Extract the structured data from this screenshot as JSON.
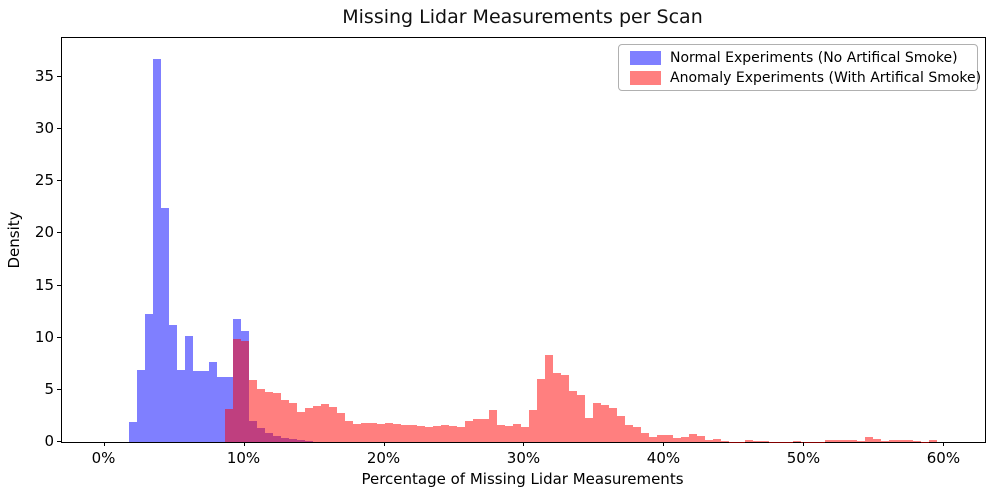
{
  "figure": {
    "title": "Missing Lidar Measurements per Scan"
  },
  "chart_data": {
    "type": "bar",
    "subtype": "overlaid-histogram",
    "title": "Missing Lidar Measurements per Scan",
    "xlabel": "Percentage of Missing Lidar Measurements",
    "ylabel": "Density",
    "xlim_pct": [
      -3.04,
      62.9
    ],
    "ylim": [
      0,
      38.74
    ],
    "grid": false,
    "legend_position": "upper right",
    "xticks": [
      {
        "value": 0,
        "label": "0%"
      },
      {
        "value": 10,
        "label": "10%"
      },
      {
        "value": 20,
        "label": "20%"
      },
      {
        "value": 30,
        "label": "30%"
      },
      {
        "value": 40,
        "label": "40%"
      },
      {
        "value": 50,
        "label": "50%"
      },
      {
        "value": 60,
        "label": "60%"
      }
    ],
    "yticks": [
      0,
      5,
      10,
      15,
      20,
      25,
      30,
      35
    ],
    "bin_width_pct": 0.5714,
    "series": [
      {
        "name": "Normal Experiments (No Artifical Smoke)",
        "color": "rgba(0,0,255,0.5)",
        "x_start_pct": 1.76,
        "densities": [
          1.9,
          6.9,
          12.3,
          36.7,
          22.4,
          11.2,
          6.9,
          10.2,
          6.8,
          6.8,
          7.7,
          6.2,
          6.2,
          11.8,
          10.6,
          2.0,
          1.3,
          0.9,
          0.6,
          0.4,
          0.25,
          0.15,
          0.08
        ]
      },
      {
        "name": "Anomaly Experiments (With Artifical Smoke)",
        "color": "rgba(255,0,0,0.5)",
        "x_start_pct": 8.62,
        "densities": [
          3.2,
          9.9,
          9.7,
          5.95,
          5.05,
          4.8,
          4.7,
          4.0,
          3.75,
          2.9,
          3.3,
          3.5,
          3.65,
          3.4,
          2.8,
          2.0,
          1.75,
          1.85,
          1.85,
          1.7,
          1.85,
          1.75,
          1.6,
          1.65,
          1.5,
          1.4,
          1.5,
          1.65,
          1.5,
          1.4,
          2.0,
          2.2,
          2.2,
          3.1,
          1.65,
          1.55,
          1.7,
          1.4,
          3.1,
          6.0,
          8.35,
          6.6,
          6.4,
          4.9,
          4.5,
          2.3,
          3.7,
          3.55,
          3.3,
          2.5,
          1.6,
          1.45,
          0.9,
          0.45,
          0.65,
          0.7,
          0.4,
          0.5,
          0.8,
          0.6,
          0.2,
          0.25,
          0.05,
          0.03,
          0.03,
          0.15,
          0.05,
          0.1,
          0.03,
          0.02,
          0.02,
          0.05,
          0.02,
          0.02,
          0.02,
          0.15,
          0.2,
          0.2,
          0.15,
          0.05,
          0.45,
          0.3,
          0.05,
          0.15,
          0.15,
          0.2,
          0.1,
          0.02,
          0.2
        ]
      }
    ]
  }
}
